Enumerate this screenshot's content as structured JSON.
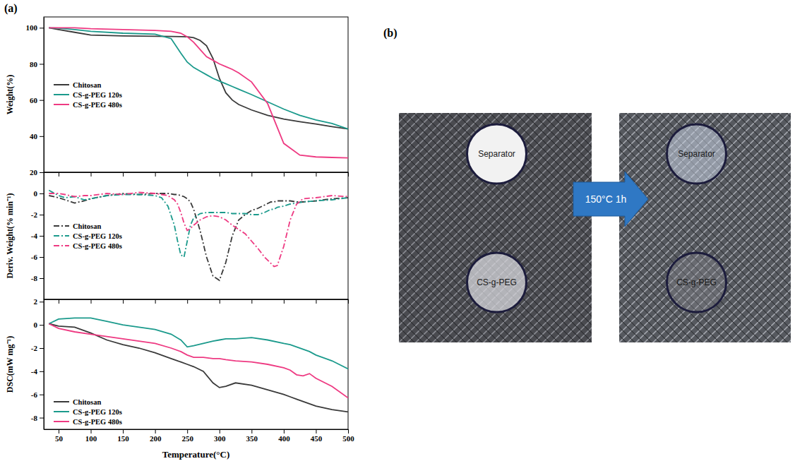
{
  "figure": {
    "panel_labels": [
      "(a)",
      "(b)"
    ]
  },
  "chart_data": [
    {
      "type": "line",
      "y_label": "Weight(%)",
      "x": [
        35,
        50,
        75,
        100,
        150,
        200,
        225,
        240,
        250,
        260,
        270,
        280,
        290,
        300,
        310,
        320,
        330,
        350,
        375,
        400,
        425,
        450,
        475,
        500
      ],
      "series": [
        {
          "name": "Chitosan",
          "color": "#3a3a3a",
          "line_style": "solid",
          "values": [
            100,
            99,
            97.5,
            96,
            95.5,
            95.3,
            95.2,
            95.1,
            95,
            94.5,
            93,
            90,
            83,
            72,
            64,
            60,
            57.5,
            54.5,
            51.5,
            49.5,
            48,
            46.7,
            45.3,
            44
          ]
        },
        {
          "name": "CS-g-PEG 120s",
          "color": "#1b9a8c",
          "line_style": "solid",
          "values": [
            100,
            99.8,
            99,
            98,
            97,
            96.5,
            94,
            86,
            81,
            78,
            76,
            74,
            72,
            70.5,
            69,
            67.5,
            66,
            63,
            59,
            55,
            51.5,
            49,
            47,
            44
          ]
        },
        {
          "name": "CS-g-PEG 480s",
          "color": "#ee3a82",
          "line_style": "solid",
          "values": [
            100,
            100,
            100,
            99.5,
            99,
            98.5,
            98,
            97,
            95,
            92,
            88,
            84,
            82,
            80,
            78.5,
            77,
            75,
            70,
            58,
            36,
            29.5,
            28.5,
            28.2,
            28
          ]
        }
      ],
      "xlim": [
        27,
        500
      ],
      "xticks": [
        50,
        100,
        150,
        200,
        250,
        300,
        350,
        400,
        450,
        500
      ],
      "ylim": [
        20,
        106
      ],
      "yticks": [
        20,
        40,
        60,
        80,
        100
      ],
      "legend": "center left",
      "tick_labels": "y"
    },
    {
      "type": "line",
      "y_label": "Deriv. Weight(% min⁻¹)",
      "x": [
        35,
        50,
        60,
        75,
        90,
        100,
        125,
        150,
        175,
        200,
        210,
        220,
        230,
        235,
        240,
        245,
        250,
        255,
        260,
        270,
        280,
        290,
        300,
        310,
        320,
        330,
        340,
        350,
        360,
        370,
        380,
        385,
        390,
        400,
        410,
        420,
        430,
        450,
        475,
        500
      ],
      "series": [
        {
          "name": "Chitosan",
          "color": "#3a3a3a",
          "line_style": "dashdot",
          "values": [
            -0.2,
            -0.4,
            -0.6,
            -0.9,
            -0.7,
            -0.5,
            -0.2,
            0,
            -0.1,
            0,
            0,
            0,
            -0.1,
            -0.1,
            -0.2,
            -0.3,
            -0.5,
            -0.8,
            -1.5,
            -3.5,
            -6,
            -7.8,
            -8.2,
            -6.5,
            -4,
            -2.5,
            -2,
            -1.6,
            -1.4,
            -1.1,
            -0.8,
            -0.8,
            -0.7,
            -0.7,
            -0.7,
            -0.8,
            -0.8,
            -0.7,
            -0.5,
            -0.4
          ]
        },
        {
          "name": "CS-g-PEG 120s",
          "color": "#1b9a8c",
          "line_style": "dashdot",
          "values": [
            0.3,
            -0.2,
            -0.4,
            -0.3,
            -0.6,
            -0.5,
            -0.2,
            -0.1,
            -0.1,
            -0.2,
            -0.4,
            -1.2,
            -3,
            -4.5,
            -5.8,
            -6,
            -4.5,
            -3,
            -2.3,
            -1.9,
            -1.8,
            -1.8,
            -1.8,
            -1.8,
            -1.9,
            -1.9,
            -1.9,
            -2,
            -2,
            -1.8,
            -1.5,
            -1.5,
            -1.3,
            -1.2,
            -1,
            -0.9,
            -0.8,
            -0.7,
            -0.6,
            -0.4
          ]
        },
        {
          "name": "CS-g-PEG 480s",
          "color": "#ee3a82",
          "line_style": "dashdot",
          "values": [
            0,
            0,
            -0.1,
            -0.3,
            -0.2,
            -0.2,
            0,
            -0.1,
            0.1,
            0,
            -0.1,
            -0.2,
            -0.6,
            -1,
            -1.8,
            -2.8,
            -3.5,
            -3.3,
            -3,
            -2.5,
            -2.2,
            -2.1,
            -2.2,
            -2.5,
            -3,
            -3.4,
            -3.8,
            -4.5,
            -5.2,
            -6,
            -6.6,
            -6.9,
            -6.8,
            -5,
            -2.5,
            -1,
            -0.5,
            -0.4,
            -0.2,
            -0.3
          ]
        }
      ],
      "xlim": [
        27,
        500
      ],
      "xticks": [
        50,
        100,
        150,
        200,
        250,
        300,
        350,
        400,
        450,
        500
      ],
      "ylim": [
        -10,
        2
      ],
      "yticks": [
        0,
        -2,
        -4,
        -6,
        -8
      ],
      "legend": "center left",
      "tick_labels": "y"
    },
    {
      "type": "line",
      "y_label": "DSC(mW mg⁻¹)",
      "x_label": "Temperature(°C)",
      "x": [
        35,
        50,
        75,
        100,
        125,
        150,
        175,
        200,
        225,
        240,
        250,
        260,
        275,
        290,
        300,
        310,
        325,
        350,
        375,
        400,
        410,
        420,
        430,
        440,
        450,
        475,
        500
      ],
      "series": [
        {
          "name": "Chitosan",
          "color": "#3a3a3a",
          "line_style": "solid",
          "values": [
            0.1,
            -0.1,
            -0.2,
            -0.7,
            -1.3,
            -1.7,
            -2,
            -2.4,
            -2.9,
            -3.2,
            -3.4,
            -3.6,
            -4,
            -5,
            -5.4,
            -5.3,
            -5,
            -5.2,
            -5.6,
            -6,
            -6.2,
            -6.4,
            -6.6,
            -6.8,
            -7,
            -7.3,
            -7.5
          ]
        },
        {
          "name": "CS-g-PEG 120s",
          "color": "#1b9a8c",
          "line_style": "solid",
          "values": [
            0.1,
            0.5,
            0.6,
            0.6,
            0.3,
            0,
            -0.2,
            -0.4,
            -0.8,
            -1.3,
            -1.9,
            -1.8,
            -1.6,
            -1.4,
            -1.3,
            -1.2,
            -1.2,
            -1.1,
            -1.3,
            -1.6,
            -1.7,
            -1.9,
            -2.1,
            -2.3,
            -2.6,
            -3.1,
            -3.8
          ]
        },
        {
          "name": "CS-g-PEG 480s",
          "color": "#ee3a82",
          "line_style": "solid",
          "values": [
            0.1,
            -0.3,
            -0.6,
            -0.8,
            -1,
            -1.2,
            -1.4,
            -1.6,
            -2,
            -2.3,
            -2.6,
            -2.8,
            -2.8,
            -2.9,
            -2.9,
            -3,
            -3.1,
            -3.2,
            -3.4,
            -3.7,
            -3.9,
            -4.3,
            -4.4,
            -4.2,
            -4.6,
            -5.3,
            -6.3
          ]
        }
      ],
      "xlim": [
        27,
        500
      ],
      "xticks": [
        50,
        100,
        150,
        200,
        250,
        300,
        350,
        400,
        450,
        500
      ],
      "ylim": [
        -9,
        2.2
      ],
      "yticks": [
        2,
        0,
        -2,
        -4,
        -6,
        -8
      ],
      "legend": "lower left"
    }
  ],
  "photo_panel": {
    "before": [
      "Separator",
      "CS-g-PEG"
    ],
    "after": [
      "Separator",
      "CS-g-PEG"
    ],
    "arrow_label": "150°C 1h"
  }
}
